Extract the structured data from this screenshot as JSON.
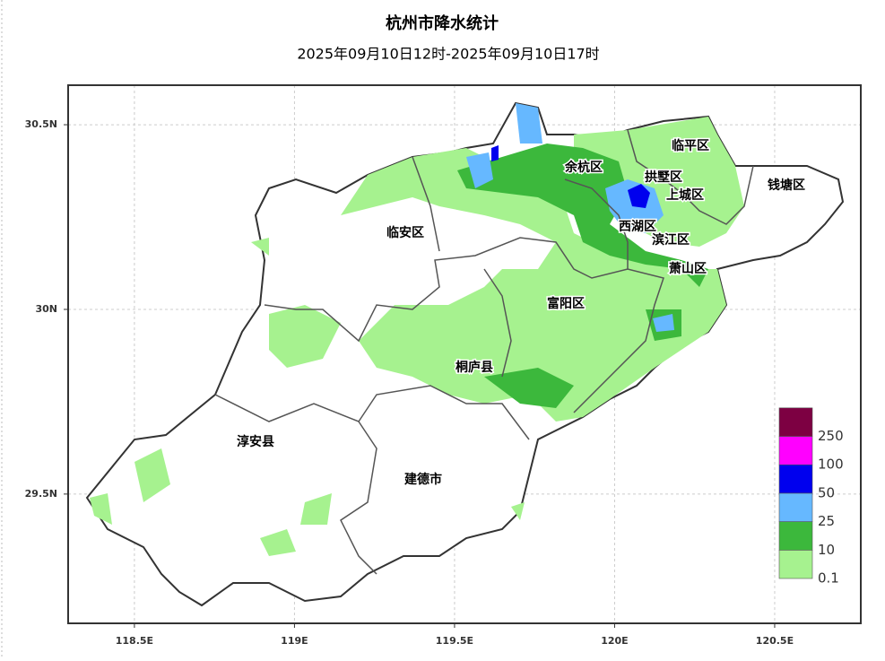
{
  "title": "杭州市降水统计",
  "subtitle": "2025年09月10日12时-2025年09月10日17时",
  "map": {
    "xlim": [
      118.293,
      120.769
    ],
    "ylim": [
      29.15,
      30.607
    ],
    "xticks": [
      {
        "value": 118.5,
        "label": "118.5E"
      },
      {
        "value": 119,
        "label": "119E"
      },
      {
        "value": 119.5,
        "label": "119.5E"
      },
      {
        "value": 120,
        "label": "120E"
      },
      {
        "value": 120.5,
        "label": "120.5E"
      }
    ],
    "yticks": [
      {
        "value": 29.5,
        "label": "29.5N"
      },
      {
        "value": 30,
        "label": "30N"
      },
      {
        "value": 30.5,
        "label": "30.5N"
      }
    ],
    "grid": true,
    "regions": [
      "临平区",
      "余杭区",
      "拱墅区",
      "上城区",
      "钱塘区",
      "西湖区",
      "滨江区",
      "临安区",
      "萧山区",
      "富阳区",
      "桐庐县",
      "淳安县",
      "建德市"
    ]
  },
  "legend": {
    "thresholds": [
      0.1,
      10,
      25,
      50,
      100,
      250
    ],
    "colors": [
      "#a6f28f",
      "#3cb83c",
      "#66b8ff",
      "#0000ee",
      "#ff00ff",
      "#7d0042"
    ]
  }
}
